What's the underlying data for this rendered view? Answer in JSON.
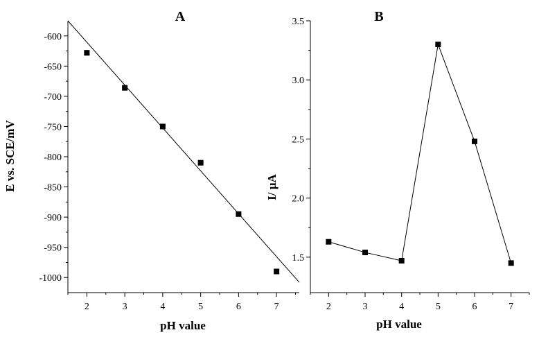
{
  "chart_data": [
    {
      "type": "scatter",
      "title": "A",
      "xlabel": "pH value",
      "ylabel": "E vs. SCE/mV",
      "xlim": [
        1.5,
        7.6
      ],
      "ylim": [
        -1025,
        -575
      ],
      "x": [
        2,
        3,
        4,
        5,
        6,
        7
      ],
      "xticks": [
        2,
        3,
        4,
        5,
        6,
        7
      ],
      "yticks": [
        -600,
        -650,
        -700,
        -750,
        -800,
        -850,
        -900,
        -950,
        -1000
      ],
      "series": [
        {
          "values": [
            -628,
            -686,
            -750,
            -810,
            -895,
            -990
          ]
        }
      ],
      "fit_line": {
        "x": [
          1.5,
          7.6
        ],
        "y": [
          -575,
          -1008
        ]
      },
      "grid": false
    },
    {
      "type": "line",
      "title": "B",
      "xlabel": "pH value",
      "ylabel": "I/ µA",
      "xlim": [
        1.5,
        7.5
      ],
      "ylim": [
        1.2,
        3.5
      ],
      "x": [
        2,
        3,
        4,
        5,
        6,
        7
      ],
      "xticks": [
        2,
        3,
        4,
        5,
        6,
        7
      ],
      "yticks": [
        1.5,
        2.0,
        2.5,
        3.0,
        3.5
      ],
      "ytick_labels": [
        "1.5",
        "2.0",
        "2.5",
        "3.0",
        "3.5"
      ],
      "series": [
        {
          "values": [
            1.63,
            1.54,
            1.47,
            3.3,
            2.48,
            1.45
          ]
        }
      ],
      "grid": false
    }
  ]
}
